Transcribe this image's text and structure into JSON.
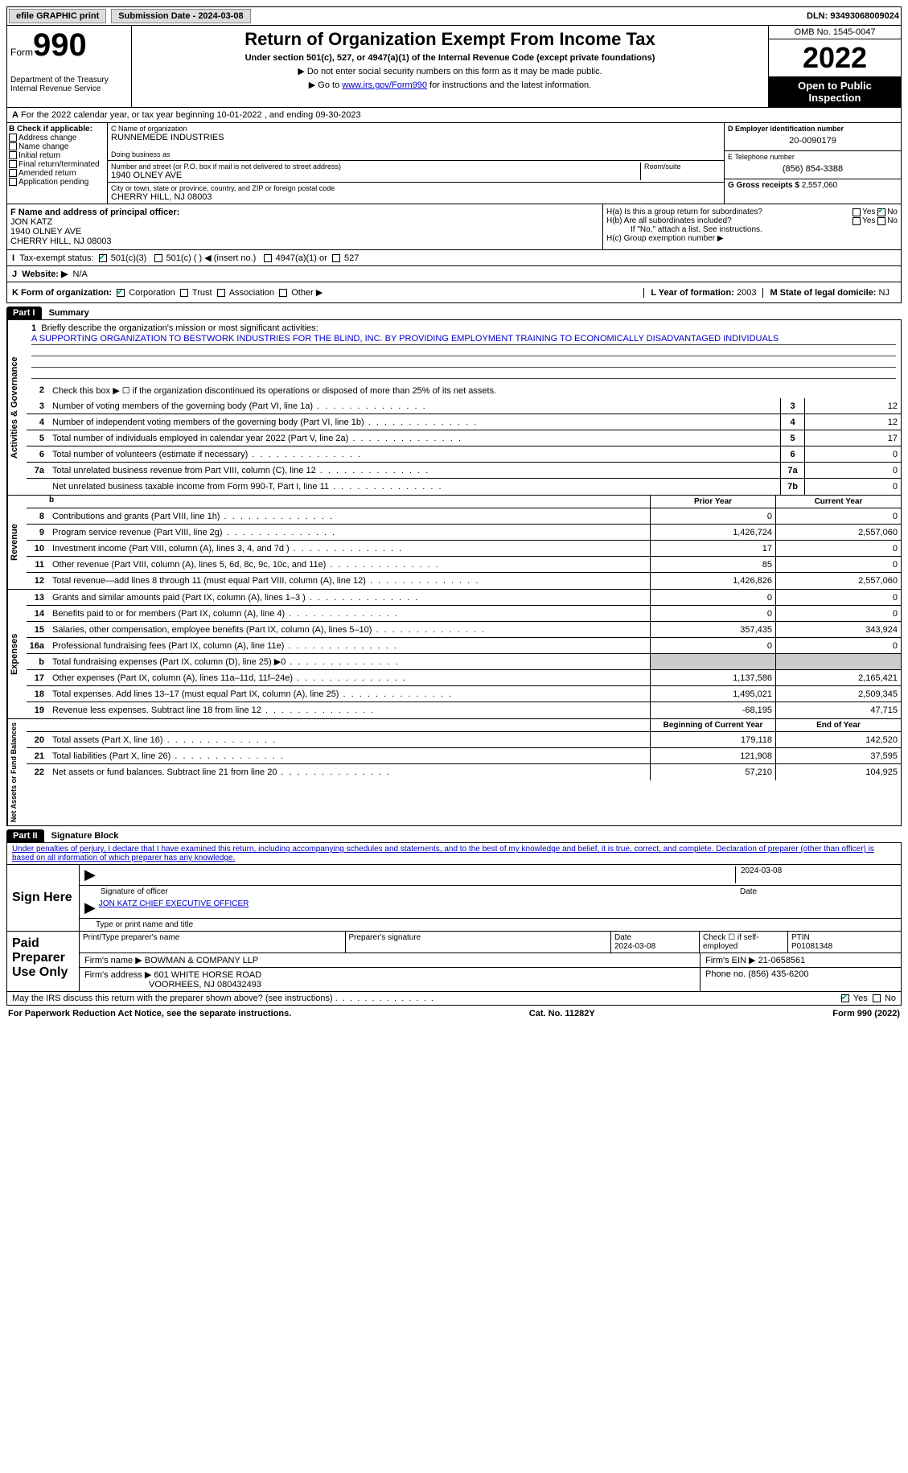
{
  "header": {
    "efile": "efile GRAPHIC print",
    "submission_label": "Submission Date - 2024-03-08",
    "dln_label": "DLN: 93493068009024"
  },
  "title_block": {
    "form_label": "Form",
    "form_number": "990",
    "dept": "Department of the Treasury",
    "irs": "Internal Revenue Service",
    "main_title": "Return of Organization Exempt From Income Tax",
    "subtitle": "Under section 501(c), 527, or 4947(a)(1) of the Internal Revenue Code (except private foundations)",
    "note1": "▶ Do not enter social security numbers on this form as it may be made public.",
    "note2_pre": "▶ Go to ",
    "note2_link": "www.irs.gov/Form990",
    "note2_post": " for instructions and the latest information.",
    "omb": "OMB No. 1545-0047",
    "year": "2022",
    "open": "Open to Public Inspection"
  },
  "line_a": "For the 2022 calendar year, or tax year beginning 10-01-2022   , and ending 09-30-2023",
  "box_b": {
    "label": "B Check if applicable:",
    "items": [
      "Address change",
      "Name change",
      "Initial return",
      "Final return/terminated",
      "Amended return",
      "Application pending"
    ]
  },
  "box_c": {
    "name_label": "C Name of organization",
    "name": "RUNNEMEDE INDUSTRIES",
    "dba_label": "Doing business as",
    "addr_label": "Number and street (or P.O. box if mail is not delivered to street address)",
    "room_label": "Room/suite",
    "addr": "1940 OLNEY AVE",
    "city_label": "City or town, state or province, country, and ZIP or foreign postal code",
    "city": "CHERRY HILL, NJ  08003"
  },
  "box_d": {
    "ein_label": "D Employer identification number",
    "ein": "20-0090179",
    "tel_label": "E Telephone number",
    "tel": "(856) 854-3388",
    "gross_label": "G Gross receipts $",
    "gross": "2,557,060"
  },
  "box_f": {
    "label": "F  Name and address of principal officer:",
    "name": "JON KATZ",
    "addr1": "1940 OLNEY AVE",
    "addr2": "CHERRY HILL, NJ  08003"
  },
  "box_h": {
    "ha": "H(a)  Is this a group return for subordinates?",
    "hb": "H(b)  Are all subordinates included?",
    "hb_note": "If \"No,\" attach a list. See instructions.",
    "hc": "H(c)  Group exemption number ▶",
    "yes": "Yes",
    "no": "No"
  },
  "tax_exempt": {
    "label": "Tax-exempt status:",
    "i501c3": "501(c)(3)",
    "i501c": "501(c) (  ) ◀ (insert no.)",
    "i4947": "4947(a)(1) or",
    "i527": "527"
  },
  "website": {
    "label": "Website: ▶",
    "value": "N/A"
  },
  "box_k": {
    "label": "K Form of organization:",
    "corp": "Corporation",
    "trust": "Trust",
    "assoc": "Association",
    "other": "Other ▶"
  },
  "box_l": {
    "label": "L Year of formation:",
    "value": "2003"
  },
  "box_m": {
    "label": "M State of legal domicile:",
    "value": "NJ"
  },
  "part1": {
    "hdr": "Part I",
    "title": "Summary",
    "tab_ag": "Activities & Governance",
    "tab_rev": "Revenue",
    "tab_exp": "Expenses",
    "tab_net": "Net Assets or Fund Balances",
    "l1_label": "Briefly describe the organization's mission or most significant activities:",
    "l1_mission": "A SUPPORTING ORGANIZATION TO BESTWORK INDUSTRIES FOR THE BLIND, INC. BY PROVIDING EMPLOYMENT TRAINING TO ECONOMICALLY DISADVANTAGED INDIVIDUALS",
    "l2": "Check this box ▶ ☐  if the organization discontinued its operations or disposed of more than 25% of its net assets.",
    "lines_single": [
      {
        "n": "3",
        "d": "Number of voting members of the governing body (Part VI, line 1a)",
        "bn": "3",
        "v": "12"
      },
      {
        "n": "4",
        "d": "Number of independent voting members of the governing body (Part VI, line 1b)",
        "bn": "4",
        "v": "12"
      },
      {
        "n": "5",
        "d": "Total number of individuals employed in calendar year 2022 (Part V, line 2a)",
        "bn": "5",
        "v": "17"
      },
      {
        "n": "6",
        "d": "Total number of volunteers (estimate if necessary)",
        "bn": "6",
        "v": "0"
      },
      {
        "n": "7a",
        "d": "Total unrelated business revenue from Part VIII, column (C), line 12",
        "bn": "7a",
        "v": "0"
      },
      {
        "n": "",
        "d": "Net unrelated business taxable income from Form 990-T, Part I, line 11",
        "bn": "7b",
        "v": "0"
      }
    ],
    "col_prior": "Prior Year",
    "col_current": "Current Year",
    "col_bcy": "Beginning of Current Year",
    "col_eoy": "End of Year",
    "rev_lines": [
      {
        "n": "8",
        "d": "Contributions and grants (Part VIII, line 1h)",
        "p": "0",
        "c": "0"
      },
      {
        "n": "9",
        "d": "Program service revenue (Part VIII, line 2g)",
        "p": "1,426,724",
        "c": "2,557,060"
      },
      {
        "n": "10",
        "d": "Investment income (Part VIII, column (A), lines 3, 4, and 7d )",
        "p": "17",
        "c": "0"
      },
      {
        "n": "11",
        "d": "Other revenue (Part VIII, column (A), lines 5, 6d, 8c, 9c, 10c, and 11e)",
        "p": "85",
        "c": "0"
      },
      {
        "n": "12",
        "d": "Total revenue—add lines 8 through 11 (must equal Part VIII, column (A), line 12)",
        "p": "1,426,826",
        "c": "2,557,060"
      }
    ],
    "exp_lines": [
      {
        "n": "13",
        "d": "Grants and similar amounts paid (Part IX, column (A), lines 1–3 )",
        "p": "0",
        "c": "0"
      },
      {
        "n": "14",
        "d": "Benefits paid to or for members (Part IX, column (A), line 4)",
        "p": "0",
        "c": "0"
      },
      {
        "n": "15",
        "d": "Salaries, other compensation, employee benefits (Part IX, column (A), lines 5–10)",
        "p": "357,435",
        "c": "343,924"
      },
      {
        "n": "16a",
        "d": "Professional fundraising fees (Part IX, column (A), line 11e)",
        "p": "0",
        "c": "0"
      },
      {
        "n": "b",
        "d": "Total fundraising expenses (Part IX, column (D), line 25) ▶0",
        "p": "",
        "c": "",
        "gray": true
      },
      {
        "n": "17",
        "d": "Other expenses (Part IX, column (A), lines 11a–11d, 11f–24e)",
        "p": "1,137,586",
        "c": "2,165,421"
      },
      {
        "n": "18",
        "d": "Total expenses. Add lines 13–17 (must equal Part IX, column (A), line 25)",
        "p": "1,495,021",
        "c": "2,509,345"
      },
      {
        "n": "19",
        "d": "Revenue less expenses. Subtract line 18 from line 12",
        "p": "-68,195",
        "c": "47,715"
      }
    ],
    "net_lines": [
      {
        "n": "20",
        "d": "Total assets (Part X, line 16)",
        "p": "179,118",
        "c": "142,520"
      },
      {
        "n": "21",
        "d": "Total liabilities (Part X, line 26)",
        "p": "121,908",
        "c": "37,595"
      },
      {
        "n": "22",
        "d": "Net assets or fund balances. Subtract line 21 from line 20",
        "p": "57,210",
        "c": "104,925"
      }
    ]
  },
  "part2": {
    "hdr": "Part II",
    "title": "Signature Block",
    "decl": "Under penalties of perjury, I declare that I have examined this return, including accompanying schedules and statements, and to the best of my knowledge and belief, it is true, correct, and complete. Declaration of preparer (other than officer) is based on all information of which preparer has any knowledge.",
    "sign_here": "Sign Here",
    "sig_officer": "Signature of officer",
    "sig_date": "2024-03-08",
    "date_lbl": "Date",
    "officer_name": "JON KATZ  CHIEF EXECUTIVE OFFICER",
    "type_name": "Type or print name and title",
    "paid_prep": "Paid Preparer Use Only",
    "pp_name_lbl": "Print/Type preparer's name",
    "pp_sig_lbl": "Preparer's signature",
    "pp_date_lbl": "Date",
    "pp_date": "2024-03-08",
    "pp_self": "Check ☐ if self-employed",
    "pp_ptin_lbl": "PTIN",
    "pp_ptin": "P01081348",
    "firm_name_lbl": "Firm's name      ▶",
    "firm_name": "BOWMAN & COMPANY LLP",
    "firm_ein_lbl": "Firm's EIN ▶",
    "firm_ein": "21-0658561",
    "firm_addr_lbl": "Firm's address ▶",
    "firm_addr1": "601 WHITE HORSE ROAD",
    "firm_addr2": "VOORHEES, NJ  080432493",
    "firm_phone_lbl": "Phone no.",
    "firm_phone": "(856) 435-6200",
    "discuss": "May the IRS discuss this return with the preparer shown above? (see instructions)",
    "yes": "Yes",
    "no": "No"
  },
  "footer": {
    "pra": "For Paperwork Reduction Act Notice, see the separate instructions.",
    "cat": "Cat. No. 11282Y",
    "form": "Form 990 (2022)"
  }
}
